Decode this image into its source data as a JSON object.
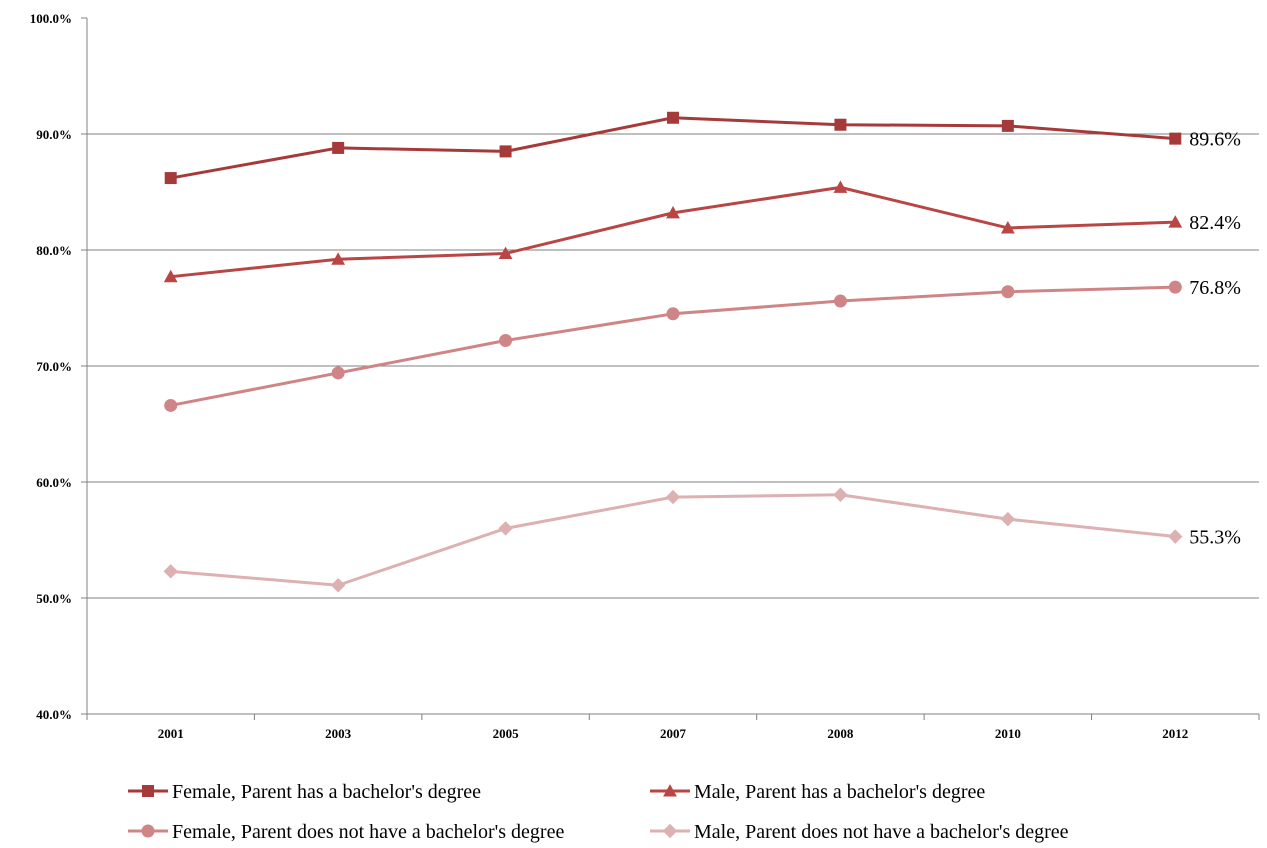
{
  "chart_data": {
    "type": "line",
    "categories": [
      "2001",
      "2003",
      "2005",
      "2007",
      "2008",
      "2010",
      "2012"
    ],
    "ylim": [
      40,
      100
    ],
    "y_ticks": [
      "40.0%",
      "50.0%",
      "60.0%",
      "70.0%",
      "80.0%",
      "90.0%",
      "100.0%"
    ],
    "y_tick_values": [
      40,
      50,
      60,
      70,
      80,
      90,
      100
    ],
    "grid": true,
    "legend_position": "bottom",
    "series": [
      {
        "name": "Female, Parent has a bachelor's degree",
        "values": [
          86.2,
          88.8,
          88.5,
          91.4,
          90.8,
          90.7,
          89.6
        ],
        "color": "#a63a3a",
        "marker": "square",
        "end_label": "89.6%"
      },
      {
        "name": "Male, Parent has a bachelor's degree",
        "values": [
          77.7,
          79.2,
          79.7,
          83.2,
          85.4,
          81.9,
          82.4
        ],
        "color": "#b94545",
        "marker": "triangle",
        "end_label": "82.4%"
      },
      {
        "name": "Female, Parent does not have a bachelor's degree",
        "values": [
          66.6,
          69.4,
          72.2,
          74.5,
          75.6,
          76.4,
          76.8
        ],
        "color": "#cf8585",
        "marker": "circle",
        "end_label": "76.8%"
      },
      {
        "name": "Male, Parent does not have a bachelor's degree",
        "values": [
          52.3,
          51.1,
          56.0,
          58.7,
          58.9,
          56.8,
          55.3
        ],
        "color": "#ddb0b2",
        "marker": "diamond",
        "end_label": "55.3%"
      }
    ]
  }
}
